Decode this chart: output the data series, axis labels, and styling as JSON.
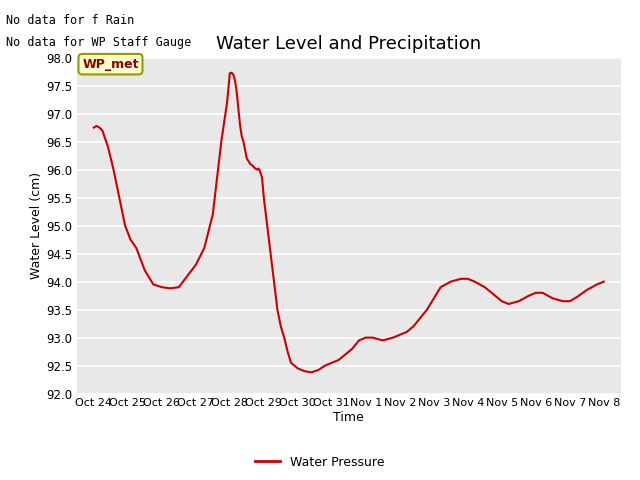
{
  "title": "Water Level and Precipitation",
  "xlabel": "Time",
  "ylabel": "Water Level (cm)",
  "ylim": [
    92.0,
    98.0
  ],
  "yticks": [
    92.0,
    92.5,
    93.0,
    93.5,
    94.0,
    94.5,
    95.0,
    95.5,
    96.0,
    96.5,
    97.0,
    97.5,
    98.0
  ],
  "x_tick_labels": [
    "Oct 24",
    "Oct 25",
    "Oct 26",
    "Oct 27",
    "Oct 28",
    "Oct 29",
    "Oct 30",
    "Oct 31",
    "Nov 1",
    "Nov 2",
    "Nov 3",
    "Nov 4",
    "Nov 5",
    "Nov 6",
    "Nov 7",
    "Nov 8"
  ],
  "line_color": "#cc0000",
  "line_width": 1.5,
  "background_color": "#e8e8e8",
  "fig_background": "#ffffff",
  "title_fontsize": 13,
  "annotation_text1": "No data for f Rain",
  "annotation_text2": "No data for WP Staff Gauge",
  "legend_label": "Water Pressure",
  "wp_met_label": "WP_met",
  "wp_met_bg": "#ffffcc",
  "wp_met_edge": "#999900",
  "x_values": [
    0,
    0.08,
    0.17,
    0.25,
    0.42,
    0.58,
    0.75,
    0.92,
    1.08,
    1.25,
    1.5,
    1.75,
    2.0,
    2.25,
    2.5,
    2.75,
    3.0,
    3.25,
    3.5,
    3.75,
    3.92,
    4.0,
    4.05,
    4.1,
    4.15,
    4.2,
    4.25,
    4.3,
    4.35,
    4.4,
    4.45,
    4.5,
    4.55,
    4.6,
    4.65,
    4.7,
    4.75,
    4.8,
    4.85,
    4.9,
    4.95,
    5.0,
    5.1,
    5.2,
    5.3,
    5.4,
    5.5,
    5.6,
    5.7,
    5.8,
    5.9,
    6.0,
    6.2,
    6.4,
    6.6,
    6.8,
    7.0,
    7.2,
    7.4,
    7.6,
    7.8,
    8.0,
    8.2,
    8.5,
    8.8,
    9.0,
    9.2,
    9.4,
    9.6,
    9.8,
    10.0,
    10.2,
    10.5,
    10.8,
    11.0,
    11.2,
    11.5,
    11.8,
    12.0,
    12.2,
    12.5,
    12.8,
    13.0,
    13.2,
    13.5,
    13.8,
    14.0,
    14.2,
    14.5,
    14.8,
    15.0
  ],
  "y_values": [
    96.75,
    96.78,
    96.75,
    96.7,
    96.4,
    96.0,
    95.5,
    95.0,
    94.75,
    94.6,
    94.2,
    93.95,
    93.9,
    93.88,
    93.9,
    94.1,
    94.3,
    94.6,
    95.2,
    96.5,
    97.2,
    97.72,
    97.73,
    97.7,
    97.6,
    97.4,
    97.1,
    96.8,
    96.6,
    96.5,
    96.35,
    96.2,
    96.15,
    96.1,
    96.08,
    96.05,
    96.02,
    96.0,
    96.02,
    95.95,
    95.85,
    95.5,
    95.0,
    94.5,
    94.0,
    93.5,
    93.2,
    93.0,
    92.75,
    92.55,
    92.5,
    92.45,
    92.4,
    92.38,
    92.42,
    92.5,
    92.55,
    92.6,
    92.7,
    92.8,
    92.95,
    93.0,
    93.0,
    92.95,
    93.0,
    93.05,
    93.1,
    93.2,
    93.35,
    93.5,
    93.7,
    93.9,
    94.0,
    94.05,
    94.05,
    94.0,
    93.9,
    93.75,
    93.65,
    93.6,
    93.65,
    93.75,
    93.8,
    93.8,
    93.7,
    93.65,
    93.65,
    93.72,
    93.85,
    93.95,
    94.0
  ]
}
